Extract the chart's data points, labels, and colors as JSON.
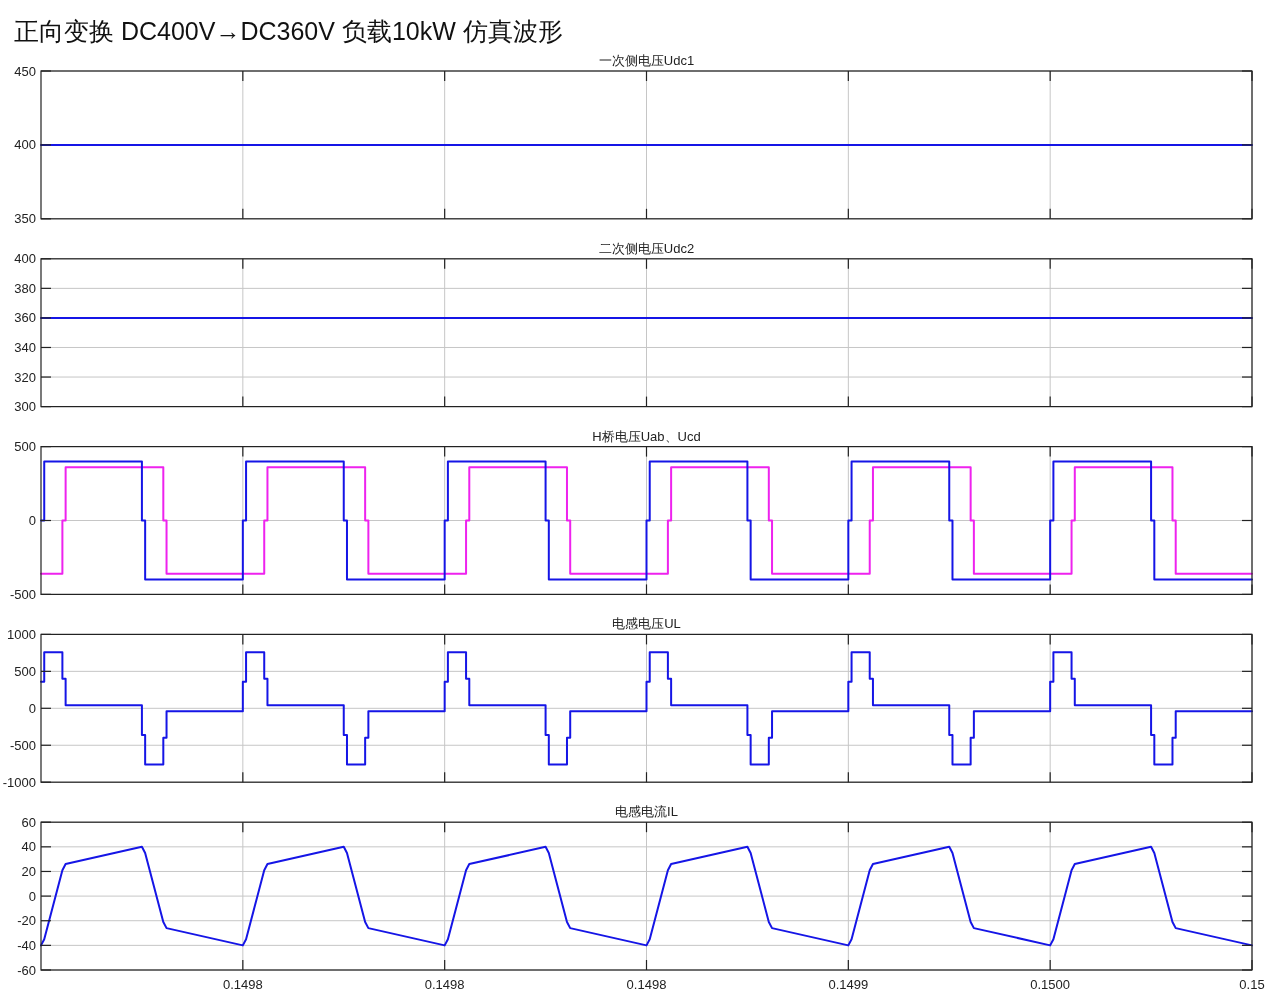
{
  "chart_data": [
    {
      "type": "line",
      "title": "一次侧电压Udc1",
      "annotations": [
        "正向变换 DC400V→DC360V 负载10kW 仿真波形"
      ],
      "xlim": [
        0.1497,
        0.15
      ],
      "xticks": [
        0.14975,
        0.1498,
        0.14985,
        0.1499,
        0.14995,
        0.15
      ],
      "ylim": [
        350,
        450
      ],
      "yticks": [
        350,
        400,
        450
      ],
      "grid": true,
      "tick_labels": "y",
      "series": [
        {
          "color": "#1515e6",
          "x": [
            0.1497,
            0.15
          ],
          "values": [
            400,
            400
          ]
        }
      ]
    },
    {
      "type": "line",
      "title": "二次侧电压Udc2",
      "xlim": [
        0.1497,
        0.15
      ],
      "xticks": [
        0.14975,
        0.1498,
        0.14985,
        0.1499,
        0.14995,
        0.15
      ],
      "ylim": [
        300,
        400
      ],
      "yticks": [
        300,
        320,
        340,
        360,
        380,
        400
      ],
      "grid": true,
      "tick_labels": "y",
      "series": [
        {
          "color": "#1515e6",
          "x": [
            0.1497,
            0.15
          ],
          "values": [
            360,
            360
          ]
        }
      ]
    },
    {
      "type": "line",
      "title": "H桥电压Uab、Ucd",
      "xlim": [
        0.1497,
        0.15
      ],
      "xticks": [
        0.14975,
        0.1498,
        0.14985,
        0.1499,
        0.14995,
        0.15
      ],
      "ylim": [
        -500,
        500
      ],
      "yticks": [
        -500,
        0,
        500
      ],
      "grid": true,
      "tick_labels": "y",
      "series": [
        {
          "color": "#ee22ee",
          "x": [
            0.1497,
            0.1497053,
            0.1497053,
            0.1497061,
            0.1497061,
            0.1497303,
            0.1497303,
            0.1497311,
            0.1497311,
            0.1497553,
            0.1497553,
            0.1497561,
            0.1497561,
            0.1497803,
            0.1497803,
            0.1497811,
            0.1497811,
            0.1498053,
            0.1498053,
            0.1498061,
            0.1498061,
            0.1498303,
            0.1498303,
            0.1498311,
            0.1498311,
            0.1498553,
            0.1498553,
            0.1498561,
            0.1498561,
            0.1498803,
            0.1498803,
            0.1498811,
            0.1498811,
            0.1499053,
            0.1499053,
            0.1499061,
            0.1499061,
            0.1499303,
            0.1499303,
            0.1499311,
            0.1499311,
            0.1499553,
            0.1499553,
            0.1499561,
            0.1499561,
            0.1499803,
            0.1499803,
            0.1499811,
            0.1499811,
            0.15
          ],
          "values": [
            -360,
            -360,
            0,
            0,
            360,
            360,
            0,
            0,
            -360,
            -360,
            0,
            0,
            360,
            360,
            0,
            0,
            -360,
            -360,
            0,
            0,
            360,
            360,
            0,
            0,
            -360,
            -360,
            0,
            0,
            360,
            360,
            0,
            0,
            -360,
            -360,
            0,
            0,
            360,
            360,
            0,
            0,
            -360,
            -360,
            0,
            0,
            360,
            360,
            0,
            0,
            -360,
            -360
          ]
        },
        {
          "color": "#1515e6",
          "x": [
            0.1497,
            0.1497008,
            0.1497008,
            0.149725,
            0.149725,
            0.1497258,
            0.1497258,
            0.14975,
            0.14975,
            0.1497508,
            0.1497508,
            0.149775,
            0.149775,
            0.1497758,
            0.1497758,
            0.1498,
            0.1498,
            0.1498008,
            0.1498008,
            0.149825,
            0.149825,
            0.1498258,
            0.1498258,
            0.14985,
            0.14985,
            0.1498508,
            0.1498508,
            0.149875,
            0.149875,
            0.1498758,
            0.1498758,
            0.1499,
            0.1499,
            0.1499008,
            0.1499008,
            0.149925,
            0.149925,
            0.1499258,
            0.1499258,
            0.14995,
            0.14995,
            0.1499508,
            0.1499508,
            0.149975,
            0.149975,
            0.1499758,
            0.1499758,
            0.15
          ],
          "values": [
            0,
            0,
            400,
            400,
            0,
            0,
            -400,
            -400,
            0,
            0,
            400,
            400,
            0,
            0,
            -400,
            -400,
            0,
            0,
            400,
            400,
            0,
            0,
            -400,
            -400,
            0,
            0,
            400,
            400,
            0,
            0,
            -400,
            -400,
            0,
            0,
            400,
            400,
            0,
            0,
            -400,
            -400,
            0,
            0,
            400,
            400,
            0,
            0,
            -400,
            -400
          ]
        }
      ]
    },
    {
      "type": "line",
      "title": "电感电压UL",
      "xlim": [
        0.1497,
        0.15
      ],
      "xticks": [
        0.14975,
        0.1498,
        0.14985,
        0.1499,
        0.14995,
        0.15
      ],
      "ylim": [
        -1000,
        1000
      ],
      "yticks": [
        -1000,
        -500,
        0,
        500,
        1000
      ],
      "grid": true,
      "tick_labels": "y",
      "series": [
        {
          "color": "#1515e6",
          "x": [
            0.1497,
            0.1497008,
            0.1497008,
            0.1497053,
            0.1497053,
            0.1497061,
            0.1497061,
            0.149725,
            0.149725,
            0.1497258,
            0.1497258,
            0.1497303,
            0.1497303,
            0.1497311,
            0.1497311,
            0.14975,
            0.14975,
            0.1497508,
            0.1497508,
            0.1497553,
            0.1497553,
            0.1497561,
            0.1497561,
            0.149775,
            0.149775,
            0.1497758,
            0.1497758,
            0.1497803,
            0.1497803,
            0.1497811,
            0.1497811,
            0.1498,
            0.1498,
            0.1498008,
            0.1498008,
            0.1498053,
            0.1498053,
            0.1498061,
            0.1498061,
            0.149825,
            0.149825,
            0.1498258,
            0.1498258,
            0.1498303,
            0.1498303,
            0.1498311,
            0.1498311,
            0.14985,
            0.14985,
            0.1498508,
            0.1498508,
            0.1498553,
            0.1498553,
            0.1498561,
            0.1498561,
            0.149875,
            0.149875,
            0.1498758,
            0.1498758,
            0.1498803,
            0.1498803,
            0.1498811,
            0.1498811,
            0.1499,
            0.1499,
            0.1499008,
            0.1499008,
            0.1499053,
            0.1499053,
            0.1499061,
            0.1499061,
            0.149925,
            0.149925,
            0.1499258,
            0.1499258,
            0.1499303,
            0.1499303,
            0.1499311,
            0.1499311,
            0.14995,
            0.14995,
            0.1499508,
            0.1499508,
            0.1499553,
            0.1499553,
            0.1499561,
            0.1499561,
            0.149975,
            0.149975,
            0.1499758,
            0.1499758,
            0.1499803,
            0.1499803,
            0.1499811,
            0.1499811,
            0.15
          ],
          "values": [
            360,
            360,
            760,
            760,
            400,
            400,
            40,
            40,
            -360,
            -360,
            -760,
            -760,
            -400,
            -400,
            -40,
            -40,
            360,
            360,
            760,
            760,
            400,
            400,
            40,
            40,
            -360,
            -360,
            -760,
            -760,
            -400,
            -400,
            -40,
            -40,
            360,
            360,
            760,
            760,
            400,
            400,
            40,
            40,
            -360,
            -360,
            -760,
            -760,
            -400,
            -400,
            -40,
            -40,
            360,
            360,
            760,
            760,
            400,
            400,
            40,
            40,
            -360,
            -360,
            -760,
            -760,
            -400,
            -400,
            -40,
            -40,
            360,
            360,
            760,
            760,
            400,
            400,
            40,
            40,
            -360,
            -360,
            -760,
            -760,
            -400,
            -400,
            -40,
            -40,
            360,
            360,
            760,
            760,
            400,
            400,
            40,
            40,
            -360,
            -360,
            -760,
            -760,
            -400,
            -400,
            -40,
            -40
          ]
        }
      ]
    },
    {
      "type": "line",
      "title": "电感电流IL",
      "xlim": [
        0.1497,
        0.15
      ],
      "xticks": [
        {
          "value": 0.14975,
          "label": "0.1498"
        },
        {
          "value": 0.1498,
          "label": "0.1498"
        },
        {
          "value": 0.14985,
          "label": "0.1498"
        },
        {
          "value": 0.1499,
          "label": "0.1499"
        },
        {
          "value": 0.14995,
          "label": "0.1500"
        },
        {
          "value": 0.15,
          "label": "0.15"
        }
      ],
      "ylim": [
        -60,
        60
      ],
      "yticks": [
        -60,
        -40,
        -20,
        0,
        20,
        40,
        60
      ],
      "grid": true,
      "series": [
        {
          "color": "#1515e6",
          "x": [
            0.1497,
            0.1497008,
            0.1497053,
            0.1497061,
            0.149725,
            0.1497258,
            0.1497303,
            0.1497311,
            0.14975,
            0.1497508,
            0.1497553,
            0.1497561,
            0.149775,
            0.1497758,
            0.1497803,
            0.1497811,
            0.1498,
            0.1498008,
            0.1498053,
            0.1498061,
            0.149825,
            0.1498258,
            0.1498303,
            0.1498311,
            0.14985,
            0.1498508,
            0.1498553,
            0.1498561,
            0.149875,
            0.1498758,
            0.1498803,
            0.1498811,
            0.1499,
            0.1499008,
            0.1499053,
            0.1499061,
            0.149925,
            0.1499258,
            0.1499303,
            0.1499311,
            0.14995,
            0.1499508,
            0.1499553,
            0.1499561,
            0.149975,
            0.1499758,
            0.1499803,
            0.1499811,
            0.15
          ],
          "values": [
            -40,
            -35,
            21,
            26,
            40,
            35,
            -21,
            -26,
            -40,
            -35,
            21,
            26,
            40,
            35,
            -21,
            -26,
            -40,
            -35,
            21,
            26,
            40,
            35,
            -21,
            -26,
            -40,
            -35,
            21,
            26,
            40,
            35,
            -21,
            -26,
            -40,
            -35,
            21,
            26,
            40,
            35,
            -21,
            -26,
            -40,
            -35,
            21,
            26,
            40,
            35,
            -21,
            -26,
            -40
          ]
        }
      ]
    }
  ]
}
